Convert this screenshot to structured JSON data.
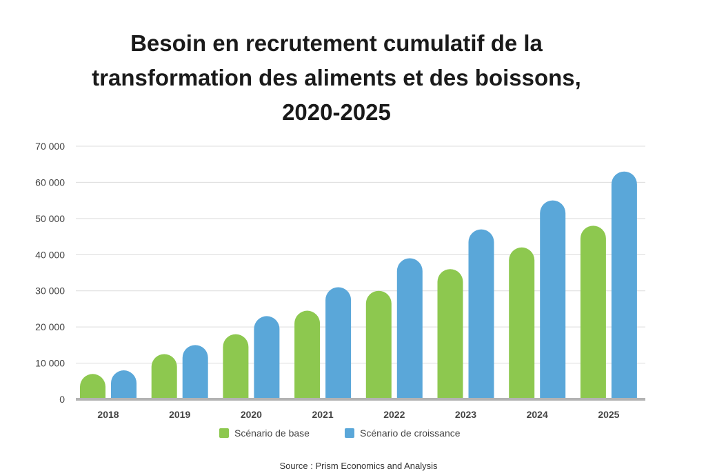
{
  "title_lines": [
    "Besoin en recrutement cumulatif de la",
    "transformation des aliments et des boissons,",
    "2020-2025"
  ],
  "source": "Source : Prism Economics and Analysis",
  "colors": {
    "base": "#8dc84f",
    "croissance": "#5aa7d9",
    "axis": "#b3b3b3",
    "grid": "#dcdcdc",
    "text": "#444444"
  },
  "chart_data": {
    "type": "bar",
    "title": "Besoin en recrutement cumulatif de la transformation des aliments et des boissons, 2020-2025",
    "categories": [
      "2018",
      "2019",
      "2020",
      "2021",
      "2022",
      "2023",
      "2024",
      "2025"
    ],
    "series": [
      {
        "name": "Scénario de base",
        "color": "#8dc84f",
        "values": [
          7000,
          12500,
          18000,
          24500,
          30000,
          36000,
          42000,
          48000
        ]
      },
      {
        "name": "Scénario de croissance",
        "color": "#5aa7d9",
        "values": [
          8000,
          15000,
          23000,
          31000,
          39000,
          47000,
          55000,
          63000
        ]
      }
    ],
    "ylim": [
      0,
      70000
    ],
    "yticks": [
      0,
      10000,
      20000,
      30000,
      40000,
      50000,
      60000,
      70000
    ],
    "ytick_labels": [
      "0",
      "10 000",
      "20 000",
      "30 000",
      "40 000",
      "50 000",
      "60 000",
      "70 000"
    ],
    "grid": true,
    "legend_position": "bottom"
  }
}
